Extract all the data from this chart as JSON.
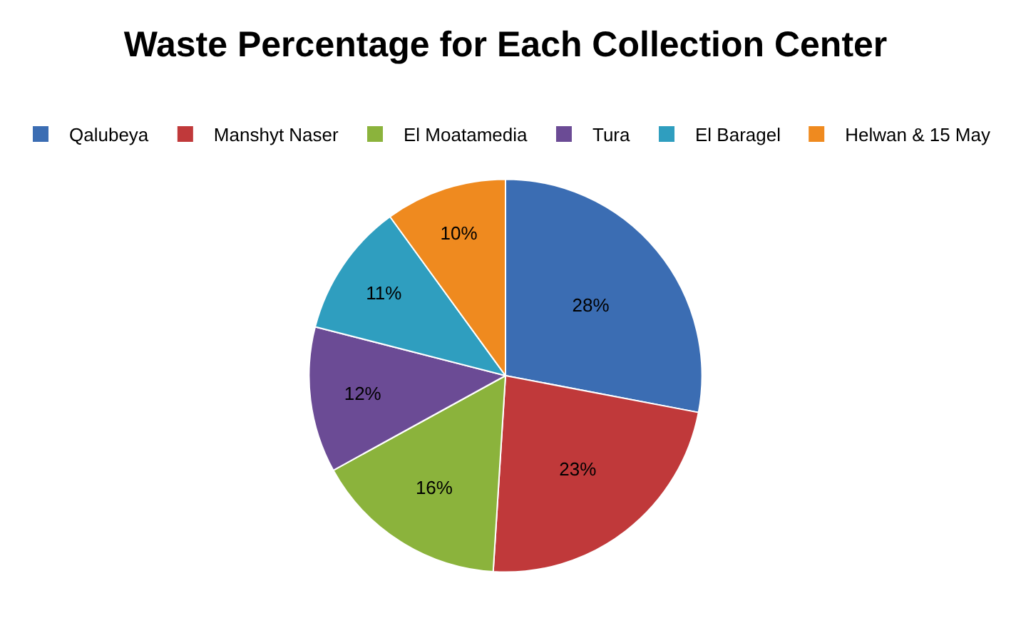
{
  "chart_data": {
    "type": "pie",
    "title": "Waste Percentage for Each Collection Center",
    "categories": [
      "Qalubeya",
      "Manshyt Naser",
      "El Moatamedia",
      "Tura",
      "El Baragel",
      "Helwan & 15 May"
    ],
    "values": [
      28,
      23,
      16,
      12,
      11,
      10
    ],
    "value_labels": [
      "28%",
      "23%",
      "16%",
      "12%",
      "11%",
      "10%"
    ],
    "colors": [
      "#3b6db3",
      "#c0393a",
      "#8bb33c",
      "#6b4b95",
      "#2f9ebf",
      "#ef8a1f"
    ],
    "legend": "top"
  }
}
